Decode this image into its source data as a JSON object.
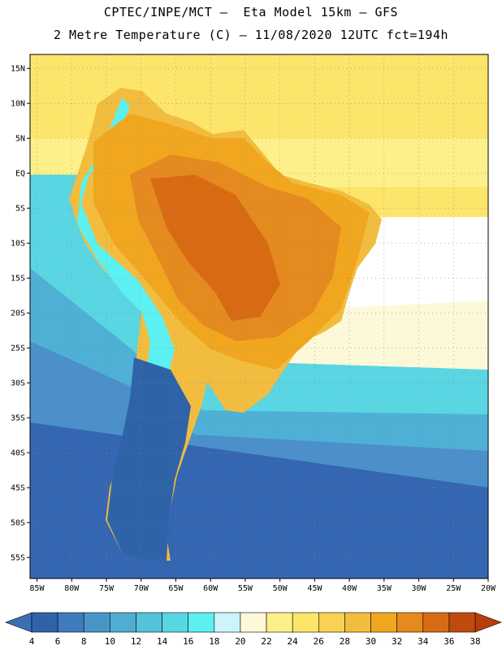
{
  "header": {
    "line1": "CPTEC/INPE/MCT –  Eta Model 15km – GFS",
    "line2": "2 Metre Temperature (C) – 11/08/2020 12UTC fct=194h"
  },
  "axes": {
    "lat_labels": [
      "15N",
      "10N",
      "5N",
      "EQ",
      "5S",
      "10S",
      "15S",
      "20S",
      "25S",
      "30S",
      "35S",
      "40S",
      "45S",
      "50S",
      "55S"
    ],
    "lat_values": [
      15,
      10,
      5,
      0,
      -5,
      -10,
      -15,
      -20,
      -25,
      -30,
      -35,
      -40,
      -45,
      -50,
      -55
    ],
    "lon_labels": [
      "85W",
      "80W",
      "75W",
      "70W",
      "65W",
      "60W",
      "55W",
      "50W",
      "45W",
      "40W",
      "35W",
      "30W",
      "25W",
      "20W"
    ],
    "lon_values": [
      -85,
      -80,
      -75,
      -70,
      -65,
      -60,
      -55,
      -50,
      -45,
      -40,
      -35,
      -30,
      -25,
      -20
    ],
    "lon_range": [
      -86,
      -20
    ],
    "lat_range": [
      -58,
      17
    ]
  },
  "colorbar": {
    "labels": [
      "4",
      "6",
      "8",
      "10",
      "12",
      "14",
      "16",
      "18",
      "20",
      "22",
      "24",
      "26",
      "28",
      "30",
      "32",
      "34",
      "36",
      "38"
    ],
    "colors": [
      "#2f63a8",
      "#3f7cbd",
      "#4a95c8",
      "#4fadd4",
      "#52c3da",
      "#57d7e3",
      "#5cf0f0",
      "#cdf4fb",
      "#fdf8d8",
      "#fdf08a",
      "#fce56a",
      "#f8d155",
      "#f2bd3f",
      "#f0a71f",
      "#e58a1f",
      "#d86a14",
      "#c04a0e"
    ],
    "low_color": "#3a6fb5",
    "high_color": "#b83e0a"
  },
  "colors": {
    "ocean_far": "#3566b1",
    "ocean_mid": "#4b8fcb",
    "ocean_cool": "#4fb0d6",
    "ocean_cyan": "#5ad5e2",
    "ocean_tropic": "#fce56a",
    "ocean_tropic_light": "#fdf08a",
    "ocean_pale": "#fdf8d8",
    "land_hot": "#d86a14",
    "land_warm": "#e58a1f",
    "land_mid": "#f0a71f",
    "land_cool": "#f2bd3f",
    "andes": "#5cf0f0",
    "patagonia": "#2f63a8"
  }
}
